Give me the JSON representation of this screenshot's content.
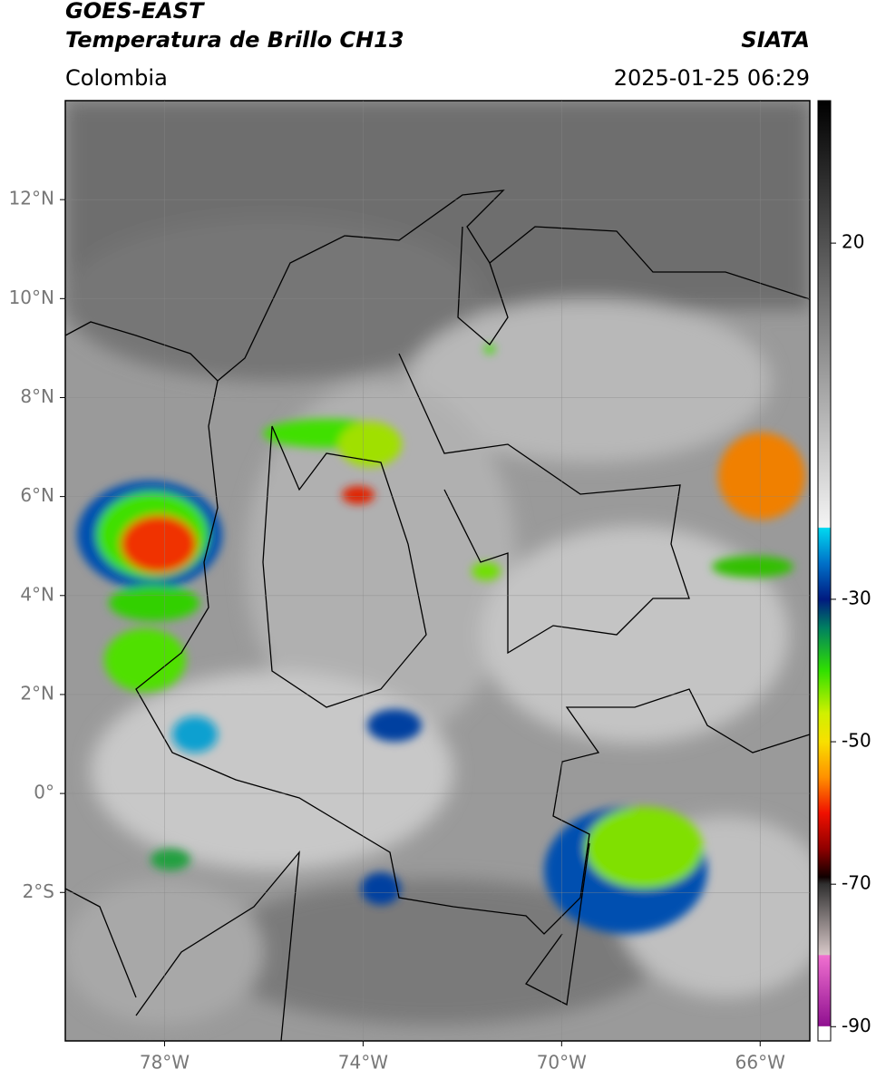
{
  "header": {
    "satellite": "GOES-EAST",
    "product": "Temperatura de Brillo CH13",
    "source": "SIATA",
    "region": "Colombia",
    "datetime": "2025-01-25 06:29"
  },
  "map": {
    "type": "map",
    "xlim": [
      -80,
      -65
    ],
    "ylim": [
      -5,
      14
    ],
    "xticks": [
      {
        "value": -78,
        "label": "78°W"
      },
      {
        "value": -74,
        "label": "74°W"
      },
      {
        "value": -70,
        "label": "70°W"
      },
      {
        "value": -66,
        "label": "66°W"
      }
    ],
    "yticks": [
      {
        "value": 12,
        "label": "12°N"
      },
      {
        "value": 10,
        "label": "10°N"
      },
      {
        "value": 8,
        "label": "8°N"
      },
      {
        "value": 6,
        "label": "6°N"
      },
      {
        "value": 4,
        "label": "4°N"
      },
      {
        "value": 2,
        "label": "2°N"
      },
      {
        "value": 0,
        "label": "0°"
      },
      {
        "value": -2,
        "label": "2°S"
      }
    ],
    "grid": true
  },
  "colorbar": {
    "lim": [
      -92,
      40
    ],
    "ticks": [
      20,
      -30,
      -50,
      -70,
      -90
    ],
    "stops": [
      [
        40,
        "#000000"
      ],
      [
        -19.9,
        "#f4f4f4"
      ],
      [
        -20,
        "#00d8f0"
      ],
      [
        -25,
        "#0070c8"
      ],
      [
        -30,
        "#001a80"
      ],
      [
        -34,
        "#008060"
      ],
      [
        -40,
        "#30e000"
      ],
      [
        -46,
        "#d0f000"
      ],
      [
        -50,
        "#f8e000"
      ],
      [
        -55,
        "#ff9000"
      ],
      [
        -60,
        "#f01000"
      ],
      [
        -65,
        "#900000"
      ],
      [
        -69,
        "#100000"
      ],
      [
        -70,
        "#303030"
      ],
      [
        -79.9,
        "#d8c8c8"
      ],
      [
        -80,
        "#f070d0"
      ],
      [
        -89.9,
        "#901090"
      ],
      [
        -90,
        "#ffffff"
      ],
      [
        -92,
        "#ffffff"
      ]
    ]
  }
}
